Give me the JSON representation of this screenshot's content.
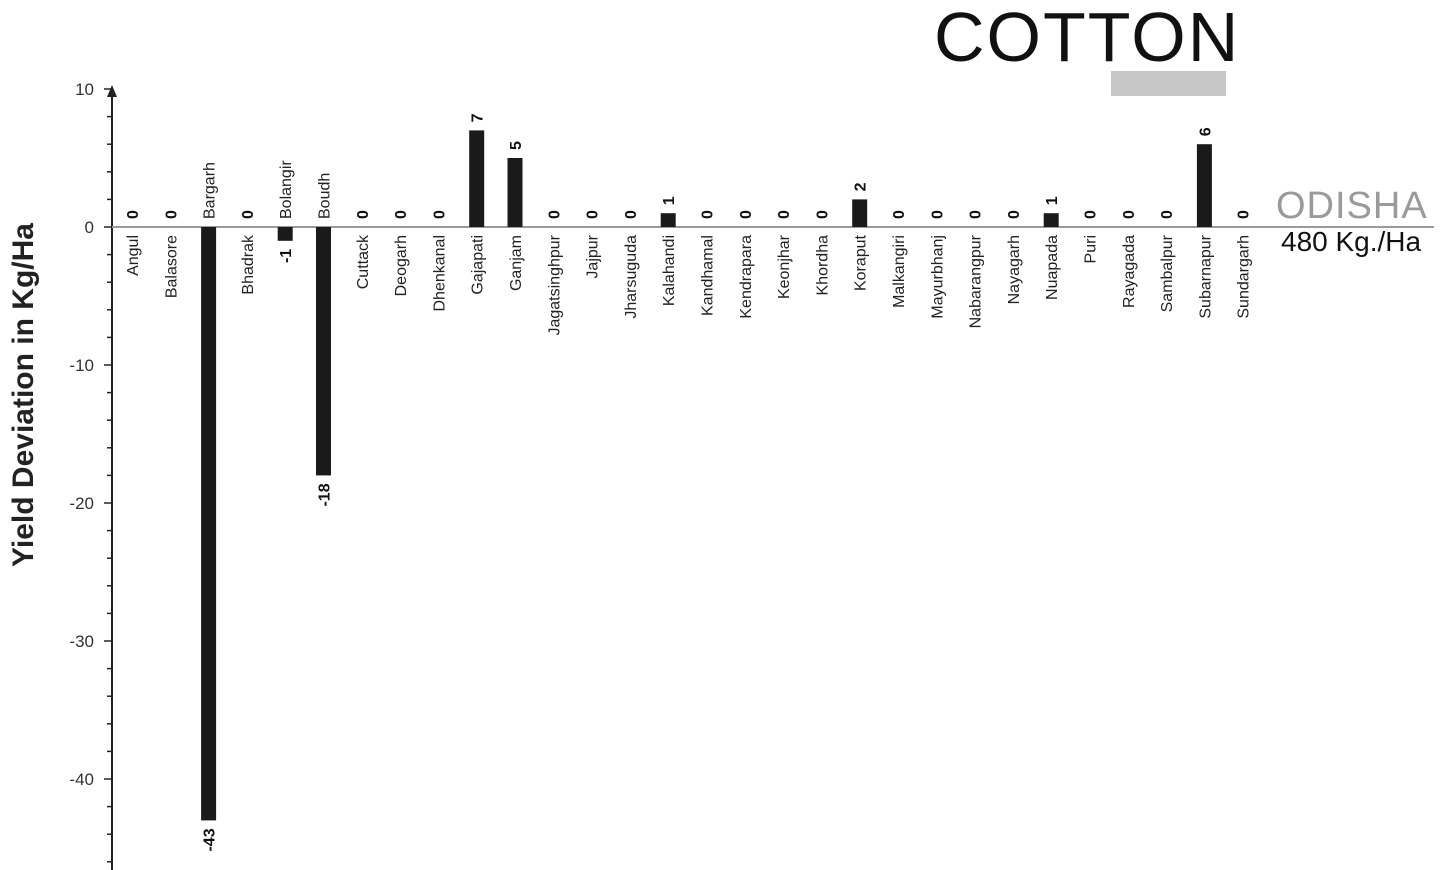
{
  "chart_data": {
    "type": "bar",
    "title": "COTTON",
    "state_label": "ODISHA",
    "state_average": "480 Kg./Ha",
    "xlabel": "",
    "ylabel": "Yield Deviation in Kg/Ha",
    "ylim": [
      -46,
      10
    ],
    "yticks": [
      10,
      0,
      -10,
      -20,
      -30,
      -40
    ],
    "grid": false,
    "categories": [
      "Angul",
      "Balasore",
      "Bargarh",
      "Bhadrak",
      "Bolangir",
      "Boudh",
      "Cuttack",
      "Deogarh",
      "Dhenkanal",
      "Gajapati",
      "Ganjam",
      "Jagatsinghpur",
      "Jajpur",
      "Jharsuguda",
      "Kalahandi",
      "Kandhamal",
      "Kendrapara",
      "Keonjhar",
      "Khordha",
      "Koraput",
      "Malkangiri",
      "Mayurbhanj",
      "Nabarangpur",
      "Nayagarh",
      "Nuapada",
      "Puri",
      "Rayagada",
      "Sambalpur",
      "Subarnapur",
      "Sundargarh"
    ],
    "values": [
      0,
      0,
      -43,
      0,
      -1,
      -18,
      0,
      0,
      0,
      7,
      5,
      0,
      0,
      0,
      1,
      0,
      0,
      0,
      0,
      2,
      0,
      0,
      0,
      0,
      1,
      0,
      0,
      0,
      6,
      0
    ],
    "colors": {
      "bar": "#1a1a1a",
      "title_bar": "#c6c6c6",
      "state_label": "#9a9a9a"
    }
  }
}
